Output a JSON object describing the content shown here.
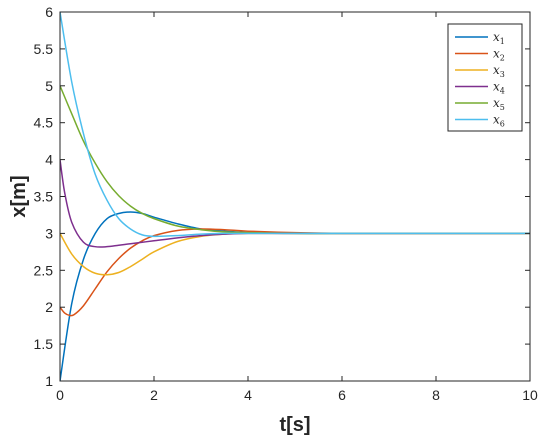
{
  "chart_data": {
    "type": "line",
    "title": "",
    "xlabel": "t[s]",
    "ylabel": "x[m]",
    "xlim": [
      0,
      10
    ],
    "ylim": [
      1,
      6
    ],
    "xticks": [
      0,
      2,
      4,
      6,
      8,
      10
    ],
    "yticks": [
      1,
      1.5,
      2,
      2.5,
      3,
      3.5,
      4,
      4.5,
      5,
      5.5,
      6
    ],
    "xtick_labels": [
      "0",
      "2",
      "4",
      "6",
      "8",
      "10"
    ],
    "ytick_labels": [
      "1",
      "1.5",
      "2",
      "2.5",
      "3",
      "3.5",
      "4",
      "4.5",
      "5",
      "5.5",
      "6"
    ],
    "grid": false,
    "legend_position": "top-right",
    "series": [
      {
        "name": "x",
        "sub": "1",
        "color": "#0072BD",
        "x": [
          0,
          0.25,
          0.5,
          0.75,
          1.0,
          1.25,
          1.5,
          1.75,
          2.0,
          2.5,
          3.0,
          3.5,
          4.0,
          5.0,
          6.0,
          8.0,
          10.0
        ],
        "y": [
          1.0,
          2.05,
          2.65,
          3.0,
          3.2,
          3.27,
          3.29,
          3.27,
          3.22,
          3.13,
          3.06,
          3.03,
          3.01,
          3.0,
          3.0,
          3.0,
          3.0
        ]
      },
      {
        "name": "x",
        "sub": "2",
        "color": "#D95319",
        "x": [
          0,
          0.1,
          0.2,
          0.3,
          0.5,
          0.75,
          1.0,
          1.25,
          1.5,
          1.75,
          2.0,
          2.5,
          3.0,
          3.5,
          4.0,
          5.0,
          6.0,
          8.0,
          10.0
        ],
        "y": [
          2.0,
          1.92,
          1.89,
          1.9,
          2.02,
          2.25,
          2.48,
          2.66,
          2.8,
          2.9,
          2.97,
          3.04,
          3.06,
          3.05,
          3.03,
          3.01,
          3.0,
          3.0,
          3.0
        ]
      },
      {
        "name": "x",
        "sub": "3",
        "color": "#EDB120",
        "x": [
          0,
          0.25,
          0.5,
          0.75,
          1.0,
          1.25,
          1.5,
          1.75,
          2.0,
          2.5,
          3.0,
          3.5,
          4.0,
          5.0,
          6.0,
          8.0,
          10.0
        ],
        "y": [
          3.0,
          2.72,
          2.55,
          2.46,
          2.44,
          2.47,
          2.55,
          2.65,
          2.75,
          2.89,
          2.96,
          2.99,
          3.0,
          3.0,
          3.0,
          3.0,
          3.0
        ]
      },
      {
        "name": "x",
        "sub": "4",
        "color": "#7E2F8E",
        "x": [
          0,
          0.1,
          0.25,
          0.5,
          0.75,
          1.0,
          1.25,
          1.5,
          1.75,
          2.0,
          2.5,
          3.0,
          3.5,
          4.0,
          5.0,
          6.0,
          8.0,
          10.0
        ],
        "y": [
          4.0,
          3.55,
          3.15,
          2.88,
          2.82,
          2.82,
          2.84,
          2.86,
          2.88,
          2.9,
          2.94,
          2.97,
          2.99,
          3.0,
          3.0,
          3.0,
          3.0,
          3.0
        ]
      },
      {
        "name": "x",
        "sub": "5",
        "color": "#77AC30",
        "x": [
          0,
          0.25,
          0.5,
          0.75,
          1.0,
          1.25,
          1.5,
          1.75,
          2.0,
          2.5,
          3.0,
          3.5,
          4.0,
          5.0,
          6.0,
          8.0,
          10.0
        ],
        "y": [
          5.0,
          4.62,
          4.25,
          3.95,
          3.7,
          3.51,
          3.37,
          3.27,
          3.2,
          3.1,
          3.05,
          3.02,
          3.01,
          3.0,
          3.0,
          3.0,
          3.0
        ]
      },
      {
        "name": "x",
        "sub": "6",
        "color": "#4DBEEE",
        "x": [
          0,
          0.25,
          0.5,
          0.75,
          1.0,
          1.25,
          1.5,
          1.75,
          2.0,
          2.5,
          3.0,
          3.5,
          4.0,
          5.0,
          6.0,
          8.0,
          10.0
        ],
        "y": [
          6.0,
          5.05,
          4.35,
          3.8,
          3.45,
          3.2,
          3.06,
          2.98,
          2.96,
          2.97,
          2.99,
          3.0,
          3.0,
          3.0,
          3.0,
          3.0,
          3.0
        ]
      }
    ]
  }
}
